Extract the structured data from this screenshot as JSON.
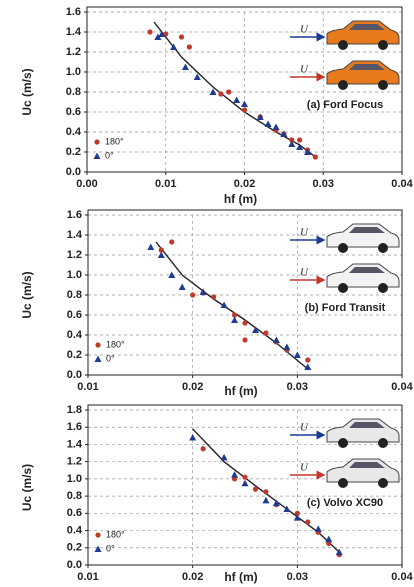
{
  "chart_data": [
    {
      "type": "scatter",
      "annotation": "(a) Ford Focus",
      "arrow_labels": [
        "U",
        "U"
      ],
      "x_label": "hf (m)",
      "y_label": "Uc (m/s)",
      "xlim": [
        0,
        0.04
      ],
      "xticks": [
        {
          "value": 0,
          "label": "0.00"
        },
        0.01,
        0.02,
        0.03,
        0.04
      ],
      "ylim": [
        0,
        1.6
      ],
      "yticks": [
        {
          "value": 0,
          "label": "0.0"
        },
        0.2,
        0.4,
        0.6,
        0.8,
        {
          "value": 1,
          "label": "1.0"
        },
        1.2,
        1.4,
        1.6
      ],
      "grid": true,
      "legend": "lower left",
      "series": [
        {
          "name": "180°",
          "color": "#c0392b",
          "marker": "circle",
          "x": [
            0.008,
            0.01,
            0.012,
            0.013,
            0.017,
            0.018,
            0.02,
            0.022,
            0.024,
            0.025,
            0.026,
            0.027,
            0.028,
            0.029
          ],
          "values": [
            1.4,
            1.38,
            1.35,
            1.25,
            0.78,
            0.8,
            0.62,
            0.55,
            0.42,
            0.38,
            0.32,
            0.32,
            0.22,
            0.15
          ]
        },
        {
          "name": "0°",
          "color": "#1f3a93",
          "marker": "triangle",
          "x": [
            0.009,
            0.0095,
            0.011,
            0.0125,
            0.014,
            0.016,
            0.019,
            0.02,
            0.022,
            0.023,
            0.024,
            0.025,
            0.026,
            0.027,
            0.028
          ],
          "values": [
            1.35,
            1.38,
            1.25,
            1.05,
            0.95,
            0.8,
            0.72,
            0.68,
            0.55,
            0.48,
            0.45,
            0.38,
            0.28,
            0.25,
            0.2
          ]
        }
      ],
      "trend": {
        "color": "#222222",
        "x": [
          0.0085,
          0.012,
          0.016,
          0.02,
          0.024,
          0.027,
          0.029
        ],
        "values": [
          1.5,
          1.15,
          0.85,
          0.6,
          0.4,
          0.27,
          0.15
        ]
      }
    },
    {
      "type": "scatter",
      "annotation": "(b) Ford Transit",
      "arrow_labels": [
        "U",
        "U"
      ],
      "x_label": "hf (m)",
      "y_label": "Uc (m/s)",
      "xlim": [
        0.01,
        0.04
      ],
      "xticks": [
        0.01,
        0.02,
        0.03,
        0.04
      ],
      "ylim": [
        0,
        1.6
      ],
      "yticks": [
        {
          "value": 0,
          "label": "0.0"
        },
        0.2,
        0.4,
        0.6,
        0.8,
        {
          "value": 1,
          "label": "1.0"
        },
        1.2,
        1.4,
        1.6
      ],
      "grid": true,
      "legend": "lower left",
      "series": [
        {
          "name": "180°",
          "color": "#c0392b",
          "marker": "circle",
          "x": [
            0.018,
            0.017,
            0.02,
            0.021,
            0.022,
            0.024,
            0.025,
            0.025,
            0.027,
            0.028,
            0.029,
            0.031
          ],
          "values": [
            1.33,
            1.25,
            0.8,
            0.82,
            0.78,
            0.6,
            0.52,
            0.35,
            0.42,
            0.33,
            0.25,
            0.15
          ]
        },
        {
          "name": "0°",
          "color": "#1f3a93",
          "marker": "triangle",
          "x": [
            0.016,
            0.017,
            0.018,
            0.019,
            0.021,
            0.023,
            0.024,
            0.026,
            0.028,
            0.029,
            0.03,
            0.031
          ],
          "values": [
            1.28,
            1.2,
            1.0,
            0.88,
            0.83,
            0.7,
            0.55,
            0.45,
            0.35,
            0.28,
            0.2,
            0.08
          ]
        }
      ],
      "trend": {
        "color": "#222222",
        "x": [
          0.0165,
          0.019,
          0.022,
          0.025,
          0.028,
          0.031
        ],
        "values": [
          1.33,
          1.0,
          0.76,
          0.55,
          0.32,
          0.06
        ]
      }
    },
    {
      "type": "scatter",
      "annotation": "(c) Volvo XC90",
      "arrow_labels": [
        "U",
        "U"
      ],
      "x_label": "hf (m)",
      "y_label": "Uc (m/s)",
      "xlim": [
        0.01,
        0.04
      ],
      "xticks": [
        0.01,
        0.02,
        0.03,
        0.04
      ],
      "ylim": [
        0,
        1.8
      ],
      "yticks": [
        {
          "value": 0,
          "label": "0.0"
        },
        0.2,
        0.4,
        0.6,
        0.8,
        {
          "value": 1,
          "label": "1.0"
        },
        1.2,
        1.4,
        1.6,
        1.8
      ],
      "grid": true,
      "legend": "lower left",
      "series": [
        {
          "name": "180°",
          "color": "#c0392b",
          "marker": "circle",
          "x": [
            0.021,
            0.024,
            0.025,
            0.026,
            0.027,
            0.028,
            0.03,
            0.031,
            0.032,
            0.033,
            0.034
          ],
          "values": [
            1.35,
            1.0,
            1.02,
            0.88,
            0.85,
            0.7,
            0.6,
            0.5,
            0.38,
            0.25,
            0.12
          ]
        },
        {
          "name": "0°",
          "color": "#1f3a93",
          "marker": "triangle",
          "x": [
            0.02,
            0.023,
            0.024,
            0.025,
            0.027,
            0.028,
            0.029,
            0.03,
            0.032,
            0.033,
            0.034
          ],
          "values": [
            1.48,
            1.25,
            1.05,
            0.95,
            0.75,
            0.72,
            0.65,
            0.55,
            0.42,
            0.3,
            0.15
          ]
        }
      ],
      "trend": {
        "color": "#222222",
        "x": [
          0.02,
          0.023,
          0.026,
          0.029,
          0.032,
          0.034
        ],
        "values": [
          1.58,
          1.2,
          0.92,
          0.65,
          0.38,
          0.15
        ]
      }
    }
  ]
}
